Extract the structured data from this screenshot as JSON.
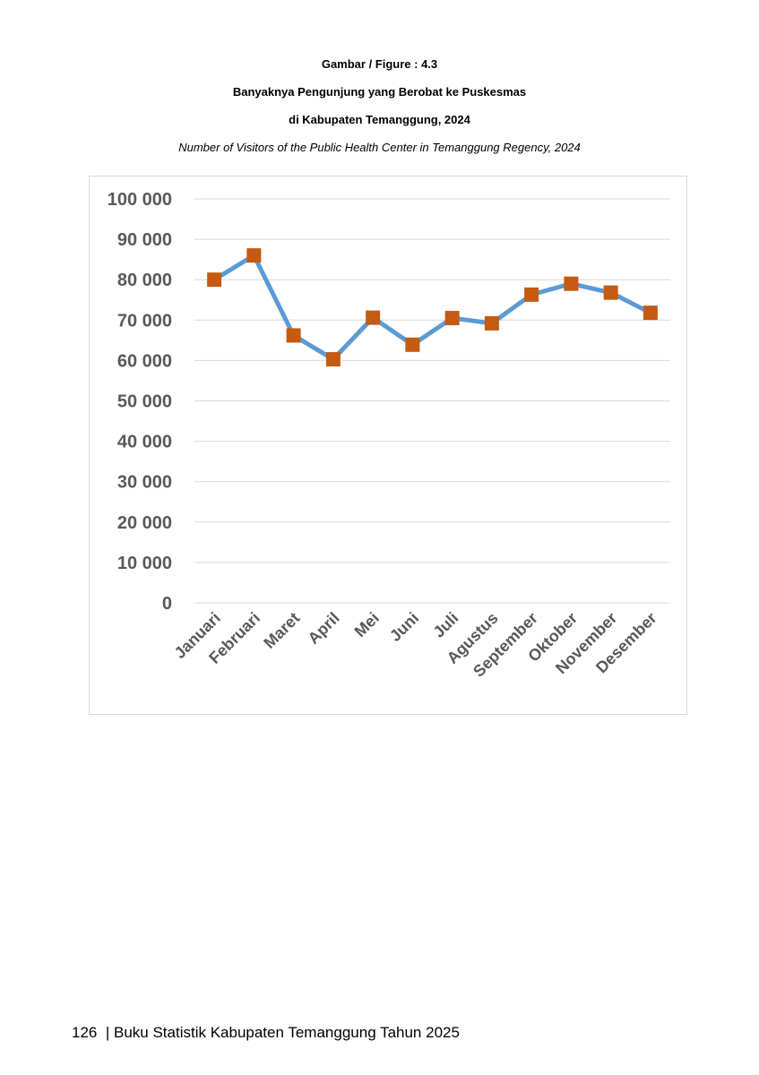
{
  "caption": {
    "figure": "Gambar / Figure   : 4.3",
    "title_id_line1": "Banyaknya Pengunjung yang Berobat ke Puskesmas",
    "title_id_line2": "di Kabupaten Temanggung, 2024",
    "title_en": "Number of Visitors of the Public Health Center in Temanggung Regency, 2024"
  },
  "chart_data": {
    "type": "line",
    "categories": [
      "Januari",
      "Februari",
      "Maret",
      "April",
      "Mei",
      "Juni",
      "Juli",
      "Agustus",
      "September",
      "Oktober",
      "November",
      "Desember"
    ],
    "series": [
      {
        "values": [
          80000,
          86000,
          66200,
          60300,
          70600,
          63900,
          70500,
          69200,
          76300,
          79000,
          76800,
          71800
        ]
      }
    ],
    "ylim": [
      0,
      100000
    ],
    "yticks": [
      0,
      10000,
      20000,
      30000,
      40000,
      50000,
      60000,
      70000,
      80000,
      90000,
      100000
    ],
    "ytick_labels": [
      "0",
      "10 000",
      "20 000",
      "30 000",
      "40 000",
      "50 000",
      "60 000",
      "70 000",
      "80 000",
      "90 000",
      "100 000"
    ],
    "grid": true,
    "title": "",
    "xlabel": "",
    "ylabel": "",
    "colors": {
      "line": "#5b9bd5",
      "marker": "#c55a11",
      "gridline": "#d9d9d9",
      "tick_label": "#595959"
    }
  },
  "footer": {
    "page_number": "126",
    "separator": "|",
    "book_title": "Buku Statistik Kabupaten Temanggung Tahun 2025"
  }
}
